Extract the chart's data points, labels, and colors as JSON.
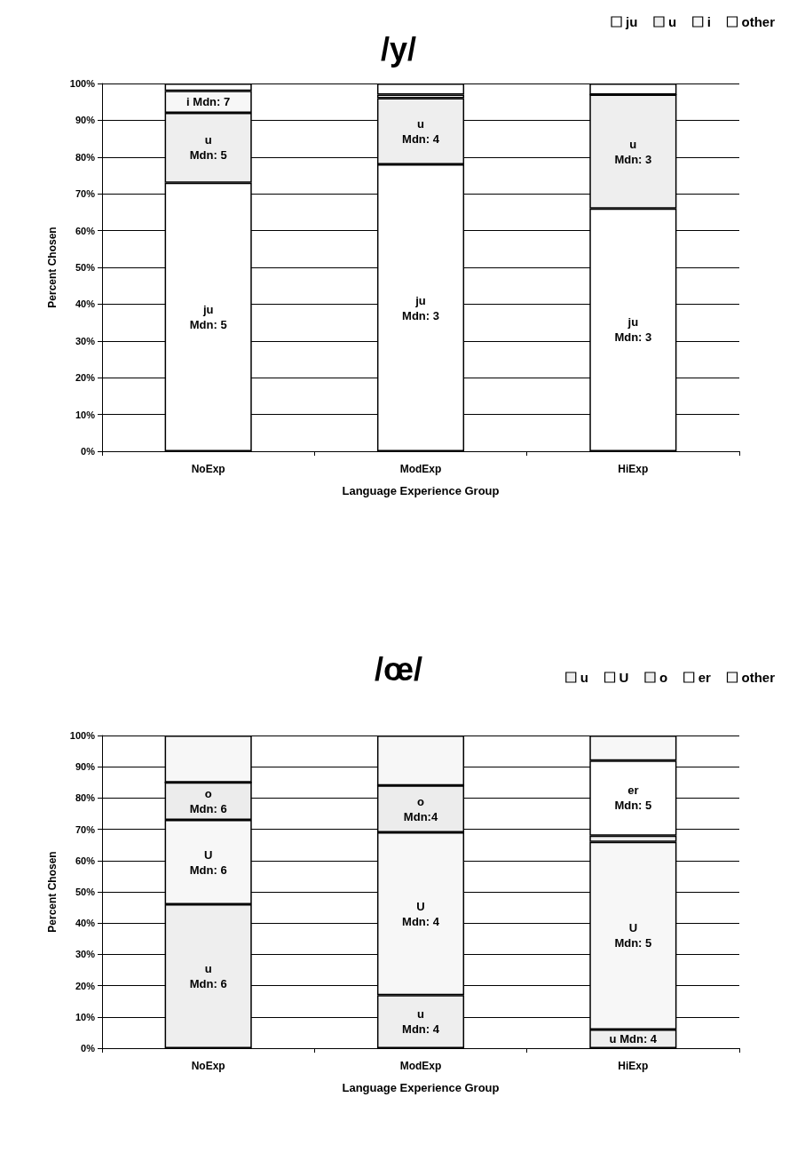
{
  "chart_data": [
    {
      "type": "bar",
      "title": "/y/",
      "xlabel": "Language Experience Group",
      "ylabel": "Percent Chosen",
      "categories": [
        "NoExp",
        "ModExp",
        "HiExp"
      ],
      "stacked": true,
      "legend": "top right",
      "grid": "y",
      "ylim": [
        0,
        100
      ],
      "yticks": [
        {
          "value": 0,
          "label": "0%"
        },
        {
          "value": 10,
          "label": "10%"
        },
        {
          "value": 20,
          "label": "20%"
        },
        {
          "value": 30,
          "label": "30%"
        },
        {
          "value": 40,
          "label": "40%"
        },
        {
          "value": 50,
          "label": "50%"
        },
        {
          "value": 60,
          "label": "60%"
        },
        {
          "value": 70,
          "label": "70%"
        },
        {
          "value": 80,
          "label": "80%"
        },
        {
          "value": 90,
          "label": "90%"
        },
        {
          "value": 100,
          "label": "100%"
        }
      ],
      "series": [
        {
          "name": "ju",
          "color": "#ffffff",
          "values": [
            73,
            78,
            66
          ]
        },
        {
          "name": "u",
          "color": "#eeeeee",
          "values": [
            19,
            18,
            31
          ]
        },
        {
          "name": "i",
          "color": "#f7f7f7",
          "values": [
            6,
            1,
            0
          ]
        },
        {
          "name": "other",
          "color": "#ffffff",
          "values": [
            2,
            3,
            3
          ]
        }
      ],
      "annotations": [
        "ju\nMdn: 5",
        "ju\nMdn: 3",
        "ju\nMdn: 3",
        "u\nMdn: 5",
        "u\nMdn: 4",
        "u\nMdn: 3",
        "i Mdn: 7"
      ]
    },
    {
      "type": "bar",
      "title": "/œ/",
      "xlabel": "Language Experience Group",
      "ylabel": "Percent Chosen",
      "categories": [
        "NoExp",
        "ModExp",
        "HiExp"
      ],
      "stacked": true,
      "legend": "top right",
      "grid": "y",
      "ylim": [
        0,
        100
      ],
      "yticks": [
        {
          "value": 0,
          "label": "0%"
        },
        {
          "value": 10,
          "label": "10%"
        },
        {
          "value": 20,
          "label": "20%"
        },
        {
          "value": 30,
          "label": "30%"
        },
        {
          "value": 40,
          "label": "40%"
        },
        {
          "value": 50,
          "label": "50%"
        },
        {
          "value": 60,
          "label": "60%"
        },
        {
          "value": 70,
          "label": "70%"
        },
        {
          "value": 80,
          "label": "80%"
        },
        {
          "value": 90,
          "label": "90%"
        },
        {
          "value": 100,
          "label": "100%"
        }
      ],
      "series": [
        {
          "name": "u",
          "color": "#eeeeee",
          "values": [
            46,
            17,
            6
          ]
        },
        {
          "name": "U",
          "color": "#f7f7f7",
          "values": [
            27,
            52,
            60
          ]
        },
        {
          "name": "o",
          "color": "#ececec",
          "values": [
            12,
            15,
            2
          ]
        },
        {
          "name": "er",
          "color": "#ffffff",
          "values": [
            0,
            0,
            24
          ]
        },
        {
          "name": "other",
          "color": "#f7f7f7",
          "values": [
            15,
            16,
            8
          ]
        }
      ],
      "annotations": [
        "u\nMdn: 6",
        "u\nMdn: 4",
        "u Mdn: 4",
        "U\nMdn: 6",
        "U\nMdn: 4",
        "U\nMdn: 5",
        "o\nMdn: 6",
        "o\nMdn:4",
        "er\nMdn: 5"
      ]
    }
  ]
}
